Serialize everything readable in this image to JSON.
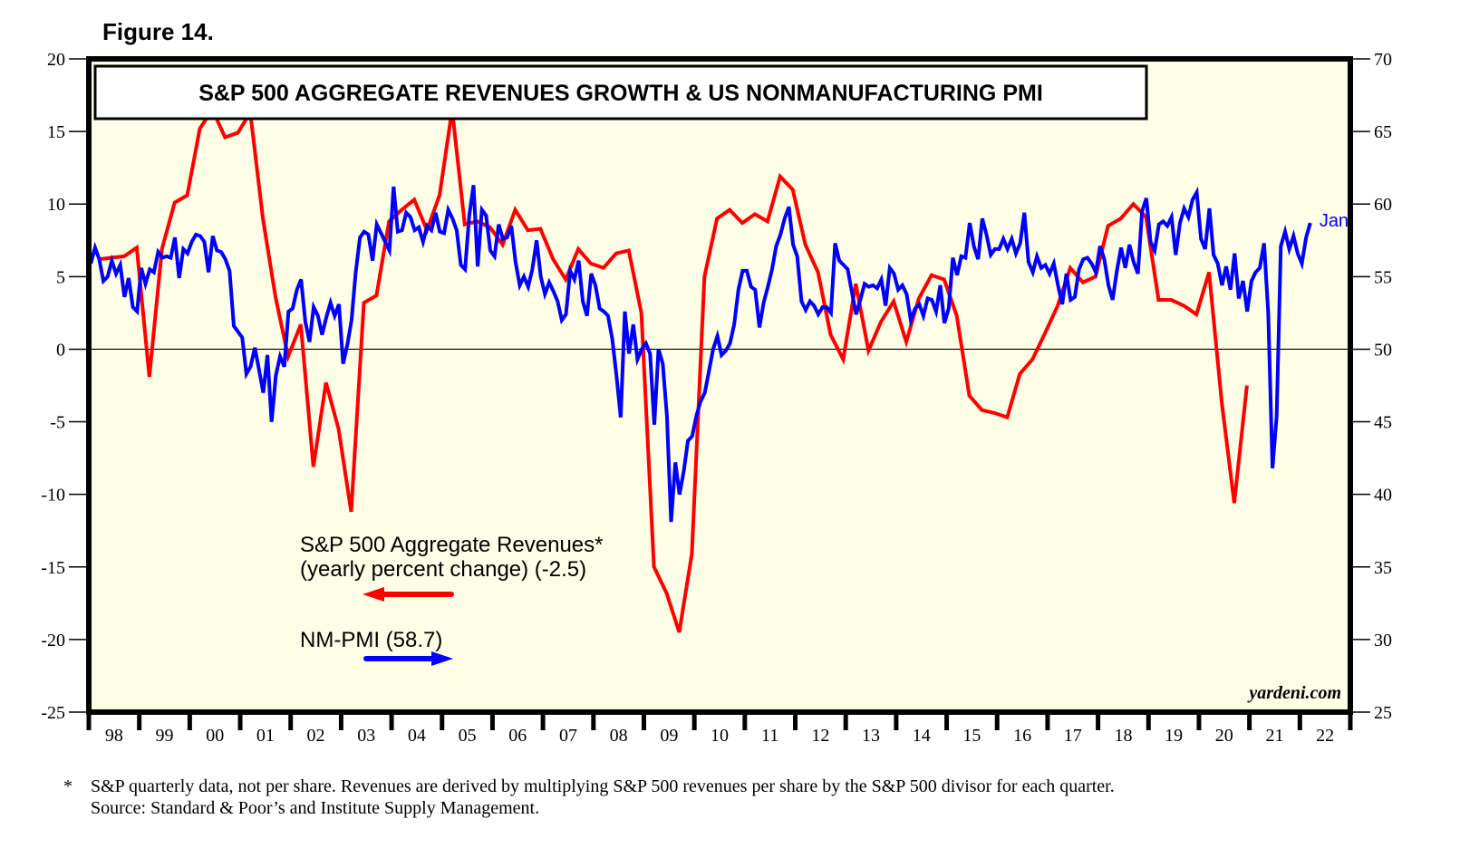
{
  "figure_label": "Figure 14.",
  "chart_data": {
    "type": "line",
    "title": "S&P 500 AGGREGATE REVENUES GROWTH & US NONMANUFACTURING PMI",
    "colors": {
      "background": "#fefee6",
      "revenues": "#ff0000",
      "pmi": "#0000ff",
      "frame": "#000000"
    },
    "x_range": [
      1998,
      2023
    ],
    "x_tick_labels": [
      "98",
      "99",
      "00",
      "01",
      "02",
      "03",
      "04",
      "05",
      "06",
      "07",
      "08",
      "09",
      "10",
      "11",
      "12",
      "13",
      "14",
      "15",
      "16",
      "17",
      "18",
      "19",
      "20",
      "21",
      "22"
    ],
    "y_left": {
      "range": [
        -25,
        20
      ],
      "ticks": [
        20,
        15,
        10,
        5,
        0,
        -5,
        -10,
        -15,
        -20,
        -25
      ]
    },
    "y_right": {
      "range": [
        25,
        70
      ],
      "ticks": [
        70,
        65,
        60,
        55,
        50,
        45,
        40,
        35,
        30,
        25
      ]
    },
    "zero_line": 0,
    "legend": [
      {
        "name": "S&P 500 Aggregate Revenues*",
        "subtitle": "(yearly percent change) (-2.5)",
        "axis": "left",
        "arrow": "left"
      },
      {
        "name": "NM-PMI (58.7)",
        "axis": "right",
        "arrow": "right"
      }
    ],
    "end_label": "Jan",
    "watermark": "yardeni.com",
    "series": [
      {
        "name": "S&P 500 Aggregate Revenues (yearly percent change)",
        "axis": "left",
        "frequency": "quarterly",
        "start": "1998Q1",
        "values": [
          6.2,
          6.3,
          6.4,
          7.0,
          -1.9,
          6.9,
          10.1,
          10.6,
          15.2,
          16.5,
          14.6,
          14.9,
          16.3,
          9.0,
          3.6,
          -0.5,
          1.7,
          -8.1,
          -2.3,
          -5.5,
          -11.2,
          3.2,
          3.7,
          8.8,
          9.6,
          10.3,
          8.2,
          10.6,
          16.5,
          8.6,
          8.8,
          8.4,
          7.2,
          9.6,
          8.2,
          8.3,
          6.2,
          4.8,
          6.9,
          5.9,
          5.6,
          6.6,
          6.8,
          2.5,
          -15.0,
          -16.8,
          -19.5,
          -14.1,
          5.0,
          9.0,
          9.6,
          8.7,
          9.3,
          8.8,
          11.9,
          11.0,
          7.2,
          5.3,
          1.0,
          -0.7,
          4.5,
          -0.1,
          1.9,
          3.3,
          0.5,
          3.5,
          5.1,
          4.8,
          2.3,
          -3.2,
          -4.2,
          -4.4,
          -4.7,
          -1.7,
          -0.7,
          1.1,
          3.0,
          5.6,
          4.6,
          5.0,
          8.5,
          9.0,
          10.0,
          9.1,
          3.4,
          3.4,
          3.0,
          2.4,
          5.3,
          -3.6,
          -10.6,
          -2.5
        ]
      },
      {
        "name": "US Nonmanufacturing PMI",
        "axis": "right",
        "frequency": "monthly",
        "start": "1998-01",
        "values": [
          55.9,
          57.0,
          56.2,
          54.7,
          55.0,
          56.1,
          55.2,
          55.8,
          53.6,
          54.9,
          52.9,
          52.6,
          55.6,
          54.5,
          55.5,
          55.3,
          56.7,
          56.3,
          56.4,
          56.3,
          57.7,
          54.9,
          56.9,
          56.6,
          57.4,
          57.9,
          57.8,
          57.4,
          55.3,
          57.8,
          56.8,
          56.7,
          56.2,
          55.4,
          51.6,
          51.2,
          50.8,
          48.3,
          48.8,
          50.1,
          48.6,
          47.0,
          49.6,
          45.0,
          48.2,
          49.5,
          48.8,
          52.6,
          52.8,
          54.1,
          54.8,
          51.9,
          50.5,
          52.9,
          52.3,
          51.0,
          52.2,
          53.2,
          52.3,
          53.1,
          49.0,
          50.3,
          52.0,
          55.3,
          57.7,
          58.1,
          57.9,
          56.1,
          58.6,
          58.0,
          57.4,
          56.8,
          61.2,
          58.1,
          58.2,
          59.4,
          59.1,
          58.2,
          58.4,
          57.4,
          58.5,
          58.2,
          59.4,
          58.1,
          58.0,
          59.6,
          59.0,
          58.2,
          55.8,
          55.5,
          59.2,
          61.3,
          55.7,
          59.6,
          59.2,
          56.8,
          56.4,
          58.6,
          57.6,
          57.7,
          58.5,
          56.0,
          54.4,
          55.0,
          54.3,
          55.5,
          57.5,
          55.0,
          53.8,
          54.6,
          54.0,
          53.3,
          52.0,
          52.4,
          55.4,
          54.8,
          56.1,
          53.3,
          52.3,
          55.2,
          54.4,
          52.8,
          52.6,
          52.3,
          50.7,
          48.2,
          45.3,
          52.6,
          49.7,
          51.7,
          49.3,
          50.0,
          50.4,
          49.7,
          44.8,
          50.0,
          49.0,
          45.4,
          38.1,
          42.2,
          40.0,
          41.6,
          43.7,
          44.0,
          45.4,
          46.4,
          47.0,
          48.5,
          50.0,
          50.9,
          49.6,
          49.9,
          50.4,
          51.7,
          54.1,
          55.4,
          55.4,
          54.3,
          54.1,
          51.5,
          53.2,
          54.3,
          55.5,
          57.1,
          57.9,
          59.0,
          59.8,
          57.2,
          56.4,
          53.3,
          52.7,
          53.3,
          53.0,
          52.4,
          52.9,
          52.9,
          52.5,
          57.3,
          56.1,
          55.8,
          55.5,
          53.9,
          52.4,
          53.4,
          54.5,
          54.3,
          54.4,
          54.2,
          54.8,
          53.0,
          55.6,
          55.2,
          54.1,
          54.4,
          53.8,
          52.0,
          52.8,
          53.1,
          52.3,
          53.5,
          53.4,
          52.6,
          54.4,
          51.8,
          52.8,
          56.3,
          55.1,
          56.4,
          56.3,
          58.7,
          57.1,
          56.2,
          59.0,
          57.9,
          56.5,
          56.9,
          56.9,
          57.6,
          56.9,
          57.6,
          56.6,
          57.3,
          59.4,
          56.0,
          55.3,
          56.4,
          55.6,
          55.8,
          55.2,
          55.9,
          54.4,
          53.1,
          55.2,
          53.4,
          53.6,
          55.5,
          56.2,
          56.3,
          55.9,
          55.3,
          57.1,
          56.2,
          54.4,
          53.4,
          55.4,
          57.0,
          55.6,
          57.2,
          56.0,
          55.2,
          59.5,
          60.4,
          57.4,
          56.8,
          58.6,
          58.8,
          58.5,
          59.1,
          56.5,
          58.7,
          59.7,
          59.1,
          60.3,
          60.8,
          57.6,
          56.9,
          59.7,
          56.5,
          55.9,
          54.4,
          55.7,
          54.1,
          56.6,
          53.5,
          54.7,
          52.6,
          54.7,
          55.3,
          55.6,
          57.3,
          52.5,
          41.8,
          45.4,
          57.1,
          58.1,
          56.9,
          57.8,
          56.6,
          55.9,
          57.7,
          58.7
        ]
      }
    ]
  },
  "footnote": {
    "marker": "*",
    "line1": "S&P quarterly data, not per share. Revenues are derived by multiplying S&P 500 revenues per share by the S&P 500 divisor for each quarter.",
    "line2": "Source: Standard & Poor’s and Institute Supply Management."
  }
}
